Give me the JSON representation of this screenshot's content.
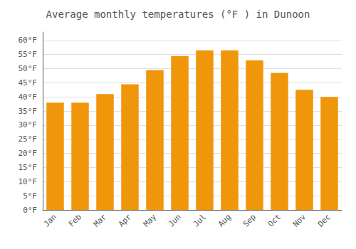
{
  "chart_data": {
    "type": "bar",
    "title": "Average monthly temperatures (°F ) in Dunoon",
    "categories": [
      "Jan",
      "Feb",
      "Mar",
      "Apr",
      "May",
      "Jun",
      "Jul",
      "Aug",
      "Sep",
      "Oct",
      "Nov",
      "Dec"
    ],
    "values": [
      38,
      38,
      41,
      44.5,
      49.5,
      54.5,
      56.5,
      56.5,
      53,
      48.5,
      42.5,
      40
    ],
    "color": "#F0960A",
    "ylim": [
      0,
      63
    ],
    "yticks": [
      {
        "value": 0,
        "label": "0°F"
      },
      {
        "value": 5,
        "label": "5°F"
      },
      {
        "value": 10,
        "label": "10°F"
      },
      {
        "value": 15,
        "label": "15°F"
      },
      {
        "value": 20,
        "label": "20°F"
      },
      {
        "value": 25,
        "label": "25°F"
      },
      {
        "value": 30,
        "label": "30°F"
      },
      {
        "value": 35,
        "label": "35°F"
      },
      {
        "value": 40,
        "label": "40°F"
      },
      {
        "value": 45,
        "label": "45°F"
      },
      {
        "value": 50,
        "label": "50°F"
      },
      {
        "value": 55,
        "label": "55°F"
      },
      {
        "value": 60,
        "label": "60°F"
      }
    ],
    "grid": true
  }
}
